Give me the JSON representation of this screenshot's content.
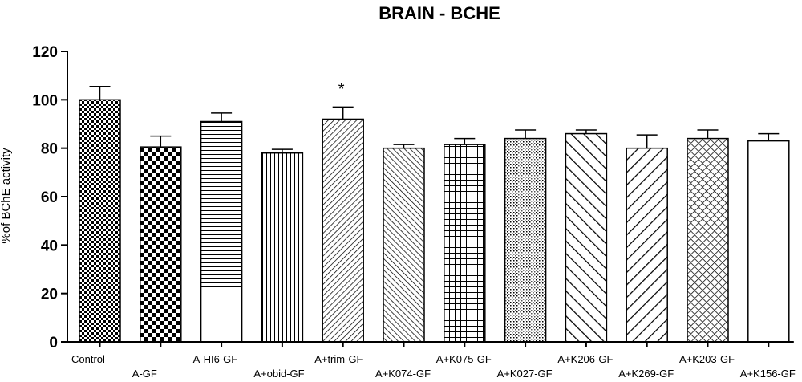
{
  "chart_data": {
    "type": "bar",
    "title": "BRAIN - BCHE",
    "xlabel": "",
    "ylabel": "%of BChE activity",
    "ylim": [
      0,
      120
    ],
    "yticks": [
      0,
      20,
      40,
      60,
      80,
      100,
      120
    ],
    "grid": false,
    "legend": "none",
    "categories": [
      "Control",
      "A-GF",
      "A-HI6-GF",
      "A+obid-GF",
      "A+trim-GF",
      "A+K074-GF",
      "A+K075-GF",
      "A+K027-GF",
      "A+K206-GF",
      "A+K269-GF",
      "A+K203-GF",
      "A+K156-GF"
    ],
    "values": [
      100,
      80.5,
      91,
      78,
      92,
      80,
      81.5,
      84,
      86,
      80,
      84,
      83
    ],
    "errors": [
      5.5,
      4.5,
      3.5,
      1.5,
      5,
      1.5,
      2.5,
      3.5,
      1.5,
      5.5,
      3.5,
      3
    ],
    "patterns": [
      "checker-fine",
      "checker-coarse",
      "hlines",
      "vlines",
      "diag-up-fine",
      "diag-down-fine",
      "grid",
      "dots",
      "diag-down-wide",
      "diag-up-wide",
      "crosshatch",
      "none"
    ],
    "annotations": [
      {
        "category": "A+trim-GF",
        "text": "*"
      }
    ]
  }
}
